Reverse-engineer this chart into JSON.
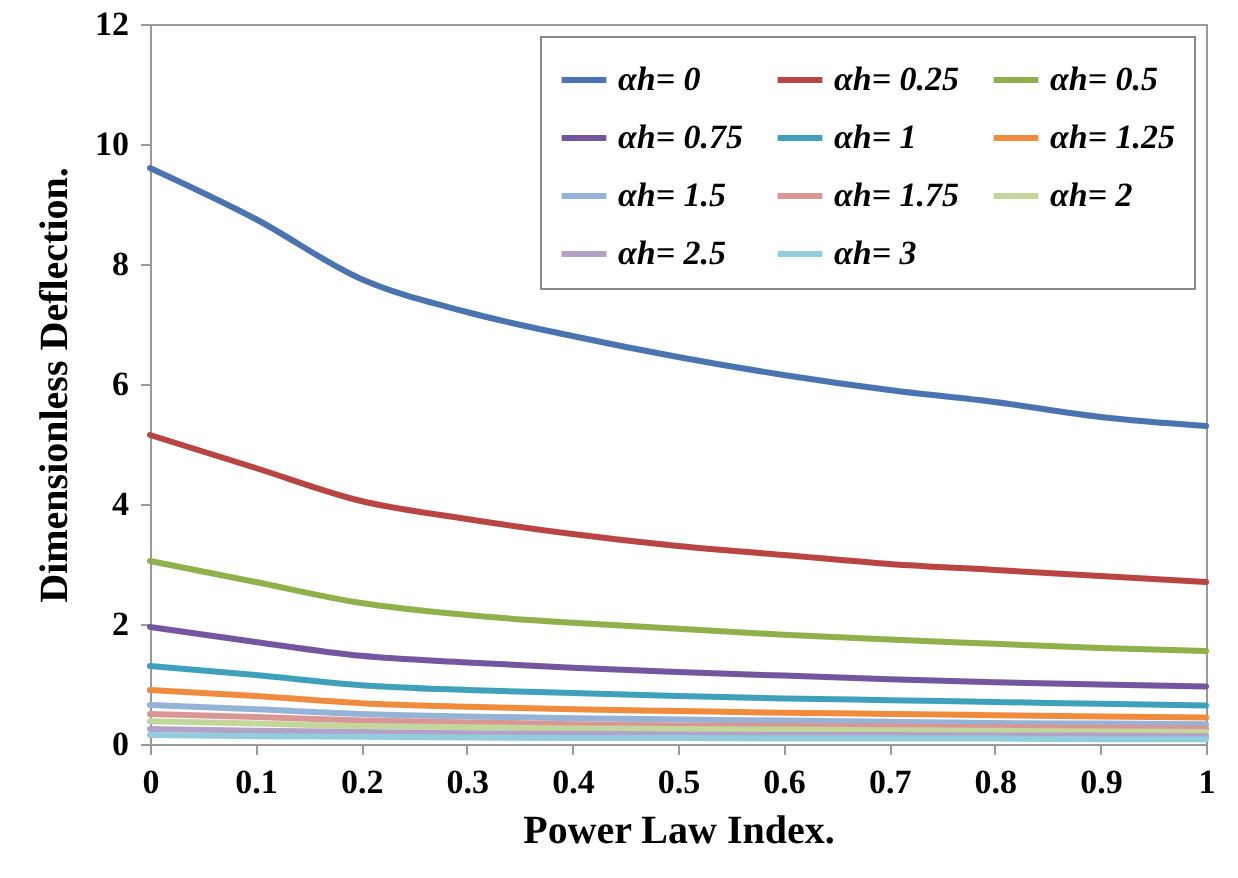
{
  "chart_data": {
    "type": "line",
    "xlabel": "Power Law Index.",
    "ylabel": "Dimensionless  Deflection.",
    "x": [
      0,
      0.1,
      0.2,
      0.3,
      0.4,
      0.5,
      0.6,
      0.7,
      0.8,
      0.9,
      1
    ],
    "xlim": [
      0,
      1
    ],
    "xticks": [
      0,
      0.1,
      0.2,
      0.3,
      0.4,
      0.5,
      0.6,
      0.7,
      0.8,
      0.9,
      1
    ],
    "ylim": [
      0,
      12
    ],
    "yticks": [
      0,
      2,
      4,
      6,
      8,
      10,
      12
    ],
    "grid": false,
    "legend": "top right",
    "marker": "none",
    "line_style": "solid",
    "series": [
      {
        "name": "αh= 0",
        "color": "#4a74b0",
        "values": [
          9.6,
          8.75,
          7.75,
          7.2,
          6.8,
          6.45,
          6.15,
          5.9,
          5.7,
          5.45,
          5.3
        ]
      },
      {
        "name": "αh= 0.25",
        "color": "#b94543",
        "values": [
          5.15,
          4.6,
          4.05,
          3.75,
          3.5,
          3.3,
          3.15,
          3.0,
          2.9,
          2.8,
          2.7
        ]
      },
      {
        "name": "αh= 0.5",
        "color": "#8fb04a",
        "values": [
          3.05,
          2.7,
          2.35,
          2.15,
          2.02,
          1.92,
          1.82,
          1.74,
          1.67,
          1.6,
          1.55
        ]
      },
      {
        "name": "αh= 0.75",
        "color": "#7455a0",
        "values": [
          1.95,
          1.7,
          1.47,
          1.36,
          1.27,
          1.2,
          1.14,
          1.08,
          1.03,
          0.99,
          0.96
        ]
      },
      {
        "name": "αh= 1",
        "color": "#3fa0bb",
        "values": [
          1.3,
          1.15,
          0.98,
          0.9,
          0.85,
          0.8,
          0.76,
          0.73,
          0.7,
          0.67,
          0.64
        ]
      },
      {
        "name": "αh= 1.25",
        "color": "#f08a3c",
        "values": [
          0.9,
          0.8,
          0.68,
          0.62,
          0.58,
          0.55,
          0.52,
          0.5,
          0.48,
          0.46,
          0.44
        ]
      },
      {
        "name": "αh= 1.5",
        "color": "#95b3d7",
        "values": [
          0.65,
          0.58,
          0.5,
          0.46,
          0.43,
          0.41,
          0.39,
          0.37,
          0.35,
          0.34,
          0.33
        ]
      },
      {
        "name": "αh= 1.75",
        "color": "#d99694",
        "values": [
          0.5,
          0.45,
          0.39,
          0.36,
          0.33,
          0.31,
          0.3,
          0.29,
          0.28,
          0.27,
          0.26
        ]
      },
      {
        "name": "αh= 2",
        "color": "#c3d69b",
        "values": [
          0.38,
          0.34,
          0.3,
          0.28,
          0.26,
          0.25,
          0.24,
          0.23,
          0.22,
          0.21,
          0.2
        ]
      },
      {
        "name": "αh= 2.5",
        "color": "#b3a2c7",
        "values": [
          0.25,
          0.22,
          0.2,
          0.18,
          0.17,
          0.16,
          0.15,
          0.15,
          0.14,
          0.14,
          0.13
        ]
      },
      {
        "name": "αh= 3",
        "color": "#93cddd",
        "values": [
          0.15,
          0.13,
          0.12,
          0.11,
          0.1,
          0.1,
          0.09,
          0.09,
          0.09,
          0.08,
          0.08
        ]
      }
    ]
  }
}
